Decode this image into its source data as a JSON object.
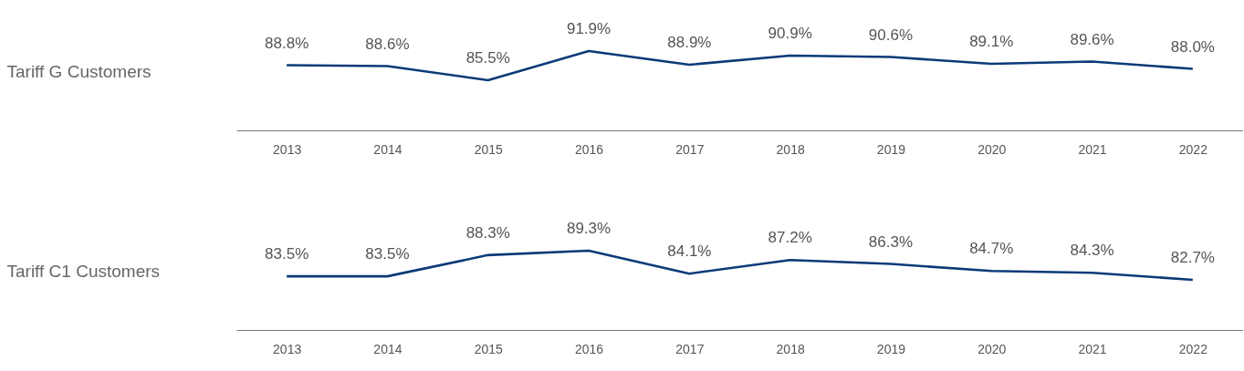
{
  "chart_data": [
    {
      "type": "line",
      "ylabel": "Tariff G Customers",
      "categories": [
        "2013",
        "2014",
        "2015",
        "2016",
        "2017",
        "2018",
        "2019",
        "2020",
        "2021",
        "2022"
      ],
      "color": "#0b3a78",
      "values": [
        88.8,
        88.6,
        85.5,
        91.9,
        88.9,
        90.9,
        90.6,
        89.1,
        89.6,
        88.0
      ],
      "value_labels": [
        "88.8%",
        "88.6%",
        "85.5%",
        "91.9%",
        "88.9%",
        "90.9%",
        "90.6%",
        "89.1%",
        "89.6%",
        "88.0%"
      ]
    },
    {
      "type": "line",
      "ylabel": "Tariff C1 Customers",
      "categories": [
        "2013",
        "2014",
        "2015",
        "2016",
        "2017",
        "2018",
        "2019",
        "2020",
        "2021",
        "2022"
      ],
      "color": "#0b3a78",
      "values": [
        83.5,
        83.5,
        88.3,
        89.3,
        84.1,
        87.2,
        86.3,
        84.7,
        84.3,
        82.7
      ],
      "value_labels": [
        "83.5%",
        "83.5%",
        "88.3%",
        "89.3%",
        "84.1%",
        "87.2%",
        "86.3%",
        "84.7%",
        "84.3%",
        "82.7%"
      ]
    }
  ]
}
